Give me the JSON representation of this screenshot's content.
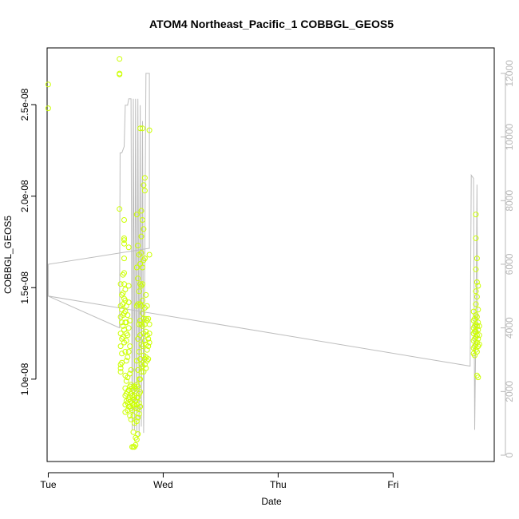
{
  "chart_data": {
    "type": "scatter",
    "title": "ATOM4 Northeast_Pacific_1 COBBGL_GEOS5",
    "xlabel": "Date",
    "ylabel": "COBBGL_GEOS5",
    "x_ticks": [
      "Tue",
      "Wed",
      "Thu",
      "Fri"
    ],
    "y_ticks": [
      "1.0e-08",
      "1.5e-08",
      "2.0e-08",
      "2.5e-08"
    ],
    "y_tick_values": [
      1e-08,
      1.5e-08,
      2e-08,
      2.5e-08
    ],
    "y2_ticks": [
      "0",
      "2000",
      "4000",
      "6000",
      "8000",
      "10000",
      "12000"
    ],
    "y2_tick_values": [
      0,
      2000,
      4000,
      6000,
      8000,
      10000,
      12000
    ],
    "xlim": [
      -0.01,
      3.88
    ],
    "ylim": [
      5.5e-09,
      2.81e-08
    ],
    "y2lim": [
      -200,
      12800
    ],
    "grid": false,
    "point_color": "#ccff00",
    "line_color": "#bdbdbd",
    "series": [
      {
        "kind": "points",
        "axis": "left",
        "points": [
          [
            0.0,
            2.61e-08
          ],
          [
            0.0,
            2.48e-08
          ],
          [
            0.62,
            2.75e-08
          ],
          [
            0.62,
            2.67e-08
          ],
          [
            0.62,
            2.665e-08
          ],
          [
            0.62,
            1.93e-08
          ],
          [
            0.63,
            1.52e-08
          ],
          [
            0.63,
            1.4e-08
          ],
          [
            0.63,
            1.34e-08
          ],
          [
            0.63,
            1.25e-08
          ],
          [
            0.63,
            1.18e-08
          ],
          [
            0.63,
            1.08e-08
          ],
          [
            0.63,
            1.06e-08
          ],
          [
            0.63,
            1.04e-08
          ],
          [
            0.64,
            1.46e-08
          ],
          [
            0.64,
            1.38e-08
          ],
          [
            0.64,
            1.31e-08
          ],
          [
            0.64,
            1.22e-08
          ],
          [
            0.64,
            1.14e-08
          ],
          [
            0.64,
            1.09e-08
          ],
          [
            0.65,
            1.57e-08
          ],
          [
            0.65,
            1.47e-08
          ],
          [
            0.65,
            1.41e-08
          ],
          [
            0.65,
            1.35e-08
          ],
          [
            0.65,
            1.29e-08
          ],
          [
            0.65,
            1.23e-08
          ],
          [
            0.66,
            1.87e-08
          ],
          [
            0.66,
            1.77e-08
          ],
          [
            0.66,
            1.76e-08
          ],
          [
            0.66,
            1.74e-08
          ],
          [
            0.66,
            1.66e-08
          ],
          [
            0.66,
            1.58e-08
          ],
          [
            0.66,
            1.52e-08
          ],
          [
            0.66,
            1.44e-08
          ],
          [
            0.66,
            1.36e-08
          ],
          [
            0.66,
            1.27e-08
          ],
          [
            0.66,
            1.2e-08
          ],
          [
            0.67,
            1.49e-08
          ],
          [
            0.67,
            1.43e-08
          ],
          [
            0.67,
            1.37e-08
          ],
          [
            0.67,
            1.31e-08
          ],
          [
            0.67,
            1.15e-08
          ],
          [
            0.67,
            1.02e-08
          ],
          [
            0.67,
            9.5e-09
          ],
          [
            0.67,
            9.1e-09
          ],
          [
            0.67,
            8.6e-09
          ],
          [
            0.67,
            8.2e-09
          ],
          [
            0.68,
            1.4e-08
          ],
          [
            0.68,
            1.31e-08
          ],
          [
            0.68,
            1.25e-08
          ],
          [
            0.68,
            1.21e-08
          ],
          [
            0.68,
            1.1e-08
          ],
          [
            0.68,
            9.9e-09
          ],
          [
            0.68,
            9.2e-09
          ],
          [
            0.68,
            8.8e-09
          ],
          [
            0.69,
            1.35e-08
          ],
          [
            0.69,
            1.24e-08
          ],
          [
            0.69,
            1.12e-08
          ],
          [
            0.69,
            1.01e-08
          ],
          [
            0.69,
            9.3e-09
          ],
          [
            0.69,
            8.7e-09
          ],
          [
            0.69,
            8.3e-09
          ],
          [
            0.7,
            1.72e-08
          ],
          [
            0.7,
            1.51e-08
          ],
          [
            0.7,
            1.42e-08
          ],
          [
            0.7,
            1.28e-08
          ],
          [
            0.7,
            1.15e-08
          ],
          [
            0.7,
            9.4e-09
          ],
          [
            0.7,
            8.9e-09
          ],
          [
            0.7,
            8.5e-09
          ],
          [
            0.71,
            1.32e-08
          ],
          [
            0.71,
            1.18e-08
          ],
          [
            0.71,
            1.03e-08
          ],
          [
            0.71,
            9.6e-09
          ],
          [
            0.71,
            9e-09
          ],
          [
            0.71,
            8.5e-09
          ],
          [
            0.71,
            8e-09
          ],
          [
            0.72,
            1.05e-08
          ],
          [
            0.72,
            9.7e-09
          ],
          [
            0.72,
            9.2e-09
          ],
          [
            0.72,
            8.8e-09
          ],
          [
            0.72,
            8.4e-09
          ],
          [
            0.72,
            7.8e-09
          ],
          [
            0.73,
            9.5e-09
          ],
          [
            0.73,
            9.1e-09
          ],
          [
            0.73,
            8.7e-09
          ],
          [
            0.73,
            8.3e-09
          ],
          [
            0.73,
            6.3e-09
          ],
          [
            0.74,
            9.4e-09
          ],
          [
            0.74,
            8.9e-09
          ],
          [
            0.74,
            8.6e-09
          ],
          [
            0.74,
            8e-09
          ],
          [
            0.74,
            7.1e-09
          ],
          [
            0.74,
            6.3e-09
          ],
          [
            0.75,
            9.6e-09
          ],
          [
            0.75,
            9.1e-09
          ],
          [
            0.75,
            8.6e-09
          ],
          [
            0.75,
            7.6e-09
          ],
          [
            0.75,
            6.3e-09
          ],
          [
            0.76,
            9.5e-09
          ],
          [
            0.76,
            8.8e-09
          ],
          [
            0.76,
            8.4e-09
          ],
          [
            0.76,
            6.8e-09
          ],
          [
            0.76,
            6.4e-09
          ],
          [
            0.77,
            1.9e-08
          ],
          [
            0.77,
            1.61e-08
          ],
          [
            0.77,
            1.4e-08
          ],
          [
            0.77,
            1.1e-08
          ],
          [
            0.77,
            9.7e-09
          ],
          [
            0.77,
            9e-09
          ],
          [
            0.77,
            8.6e-09
          ],
          [
            0.77,
            7.7e-09
          ],
          [
            0.77,
            6.7e-09
          ],
          [
            0.78,
            1.73e-08
          ],
          [
            0.78,
            1.55e-08
          ],
          [
            0.78,
            1.41e-08
          ],
          [
            0.78,
            1.22e-08
          ],
          [
            0.78,
            1.05e-08
          ],
          [
            0.78,
            9.6e-09
          ],
          [
            0.78,
            9e-09
          ],
          [
            0.78,
            8.4e-09
          ],
          [
            0.78,
            7.9e-09
          ],
          [
            0.78,
            7e-09
          ],
          [
            0.79,
            1.68e-08
          ],
          [
            0.79,
            1.48e-08
          ],
          [
            0.79,
            1.3e-08
          ],
          [
            0.79,
            1.15e-08
          ],
          [
            0.79,
            1e-08
          ],
          [
            0.79,
            9.2e-09
          ],
          [
            0.79,
            8.7e-09
          ],
          [
            0.79,
            8.1e-09
          ],
          [
            0.8,
            2.37e-08
          ],
          [
            0.8,
            1.63e-08
          ],
          [
            0.8,
            1.52e-08
          ],
          [
            0.8,
            1.41e-08
          ],
          [
            0.8,
            1.32e-08
          ],
          [
            0.8,
            1.24e-08
          ],
          [
            0.8,
            1.11e-08
          ],
          [
            0.8,
            1e-08
          ],
          [
            0.8,
            9.3e-09
          ],
          [
            0.8,
            8.5e-09
          ],
          [
            0.81,
            1.92e-08
          ],
          [
            0.81,
            1.78e-08
          ],
          [
            0.81,
            1.69e-08
          ],
          [
            0.81,
            1.51e-08
          ],
          [
            0.81,
            1.4e-08
          ],
          [
            0.81,
            1.3e-08
          ],
          [
            0.81,
            1.19e-08
          ],
          [
            0.81,
            1.08e-08
          ],
          [
            0.81,
            1.04e-08
          ],
          [
            0.82,
            2.37e-08
          ],
          [
            0.82,
            1.87e-08
          ],
          [
            0.82,
            1.61e-08
          ],
          [
            0.82,
            1.52e-08
          ],
          [
            0.82,
            1.43e-08
          ],
          [
            0.82,
            1.36e-08
          ],
          [
            0.82,
            1.29e-08
          ],
          [
            0.82,
            1.18e-08
          ],
          [
            0.82,
            1.07e-08
          ],
          [
            0.83,
            2.06e-08
          ],
          [
            0.83,
            1.82e-08
          ],
          [
            0.83,
            1.65e-08
          ],
          [
            0.83,
            1.33e-08
          ],
          [
            0.83,
            1.25e-08
          ],
          [
            0.83,
            1.13e-08
          ],
          [
            0.83,
            1.04e-08
          ],
          [
            0.84,
            2.1e-08
          ],
          [
            0.84,
            2.03e-08
          ],
          [
            0.84,
            1.66e-08
          ],
          [
            0.84,
            1.39e-08
          ],
          [
            0.84,
            1.3e-08
          ],
          [
            0.84,
            1.21e-08
          ],
          [
            0.84,
            1.11e-08
          ],
          [
            0.84,
            1.08e-08
          ],
          [
            0.85,
            1.46e-08
          ],
          [
            0.85,
            1.33e-08
          ],
          [
            0.85,
            1.26e-08
          ],
          [
            0.85,
            1.19e-08
          ],
          [
            0.85,
            1.12e-08
          ],
          [
            0.85,
            1.06e-08
          ],
          [
            0.86,
            1.4e-08
          ],
          [
            0.86,
            1.32e-08
          ],
          [
            0.86,
            1.24e-08
          ],
          [
            0.86,
            1.16e-08
          ],
          [
            0.86,
            1.1e-08
          ],
          [
            0.87,
            1.33e-08
          ],
          [
            0.87,
            1.22e-08
          ],
          [
            0.87,
            1.18e-08
          ],
          [
            0.87,
            1.11e-08
          ],
          [
            0.88,
            2.36e-08
          ],
          [
            0.88,
            1.68e-08
          ],
          [
            0.88,
            1.3e-08
          ],
          [
            0.88,
            1.25e-08
          ],
          [
            0.88,
            1.2e-08
          ],
          [
            3.7,
            1.37e-08
          ],
          [
            3.7,
            1.32e-08
          ],
          [
            3.7,
            1.28e-08
          ],
          [
            3.7,
            1.25e-08
          ],
          [
            3.7,
            1.21e-08
          ],
          [
            3.7,
            1.17e-08
          ],
          [
            3.7,
            1.14e-08
          ],
          [
            3.71,
            1.33e-08
          ],
          [
            3.71,
            1.29e-08
          ],
          [
            3.71,
            1.26e-08
          ],
          [
            3.71,
            1.22e-08
          ],
          [
            3.71,
            1.18e-08
          ],
          [
            3.71,
            1.13e-08
          ],
          [
            3.72,
            1.9e-08
          ],
          [
            3.72,
            1.77e-08
          ],
          [
            3.72,
            1.6e-08
          ],
          [
            3.72,
            1.48e-08
          ],
          [
            3.72,
            1.41e-08
          ],
          [
            3.72,
            1.35e-08
          ],
          [
            3.72,
            1.3e-08
          ],
          [
            3.72,
            1.26e-08
          ],
          [
            3.72,
            1.23e-08
          ],
          [
            3.72,
            1.19e-08
          ],
          [
            3.72,
            1.16e-08
          ],
          [
            3.73,
            1.66e-08
          ],
          [
            3.73,
            1.53e-08
          ],
          [
            3.73,
            1.45e-08
          ],
          [
            3.73,
            1.34e-08
          ],
          [
            3.73,
            1.29e-08
          ],
          [
            3.73,
            1.24e-08
          ],
          [
            3.73,
            1.2e-08
          ],
          [
            3.73,
            1.15e-08
          ],
          [
            3.73,
            1.02e-08
          ],
          [
            3.74,
            1.51e-08
          ],
          [
            3.74,
            1.38e-08
          ],
          [
            3.74,
            1.31e-08
          ],
          [
            3.74,
            1.27e-08
          ],
          [
            3.74,
            1.22e-08
          ],
          [
            3.74,
            1.18e-08
          ],
          [
            3.74,
            1.01e-08
          ],
          [
            3.75,
            1.29e-08
          ],
          [
            3.75,
            1.24e-08
          ],
          [
            3.75,
            1.19e-08
          ]
        ]
      },
      {
        "kind": "line",
        "axis": "right",
        "points": [
          [
            0.0,
            6000
          ],
          [
            0.0,
            5000
          ],
          [
            0.62,
            4000
          ],
          [
            0.625,
            9500
          ],
          [
            0.64,
            9500
          ],
          [
            0.66,
            9700
          ],
          [
            0.67,
            11000
          ],
          [
            0.69,
            11000
          ],
          [
            0.7,
            11200
          ],
          [
            0.72,
            11200
          ],
          [
            0.73,
            800
          ],
          [
            0.74,
            11200
          ],
          [
            0.75,
            800
          ],
          [
            0.76,
            11200
          ],
          [
            0.77,
            700
          ],
          [
            0.78,
            11200
          ],
          [
            0.79,
            600
          ],
          [
            0.8,
            11000
          ],
          [
            0.81,
            900
          ],
          [
            0.82,
            10500
          ],
          [
            0.83,
            700
          ],
          [
            0.84,
            6500
          ],
          [
            0.85,
            12000
          ],
          [
            0.88,
            12000
          ],
          [
            0.88,
            6500
          ],
          [
            0.0,
            6000
          ],
          [
            0.0,
            5000
          ],
          [
            3.67,
            2800
          ],
          [
            3.68,
            8800
          ],
          [
            3.7,
            8700
          ],
          [
            3.71,
            800
          ],
          [
            3.72,
            4000
          ],
          [
            3.73,
            8500
          ],
          [
            3.735,
            3800
          ]
        ]
      }
    ]
  }
}
